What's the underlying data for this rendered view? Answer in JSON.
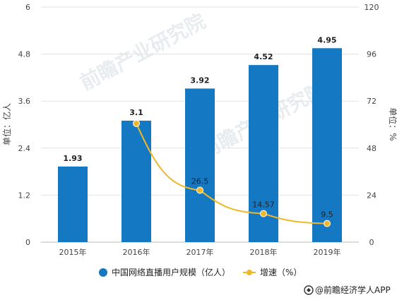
{
  "chart_data": {
    "type": "bar",
    "categories": [
      "2015年",
      "2016年",
      "2017年",
      "2018年",
      "2019年"
    ],
    "series": [
      {
        "name": "中国网络直播用户规模（亿人）",
        "type": "bar",
        "axis": "left",
        "values": [
          1.93,
          3.1,
          3.92,
          4.52,
          4.95
        ],
        "labels": [
          "1.93",
          "3.1",
          "3.92",
          "4.52",
          "4.95"
        ],
        "color": "#1578c2"
      },
      {
        "name": "增速（%）",
        "type": "line",
        "axis": "right",
        "values": [
          null,
          60.6,
          26.5,
          14.57,
          9.5
        ],
        "labels": [
          "",
          "",
          "26.5",
          "14.57",
          "9.5"
        ],
        "color": "#f0b828"
      }
    ],
    "ylabel": "单位：亿人",
    "ylabel_right": "单位：%",
    "ylim": [
      0,
      6
    ],
    "ylim_right": [
      0,
      120
    ],
    "yticks": [
      "0",
      "1.2",
      "2.4",
      "3.6",
      "4.8",
      "6"
    ],
    "yticks_right": [
      "0",
      "24",
      "48",
      "72",
      "96",
      "120"
    ],
    "grid": true,
    "legend_position": "bottom"
  },
  "source": "@前瞻经济学人APP",
  "watermark": "前瞻产业研究院"
}
